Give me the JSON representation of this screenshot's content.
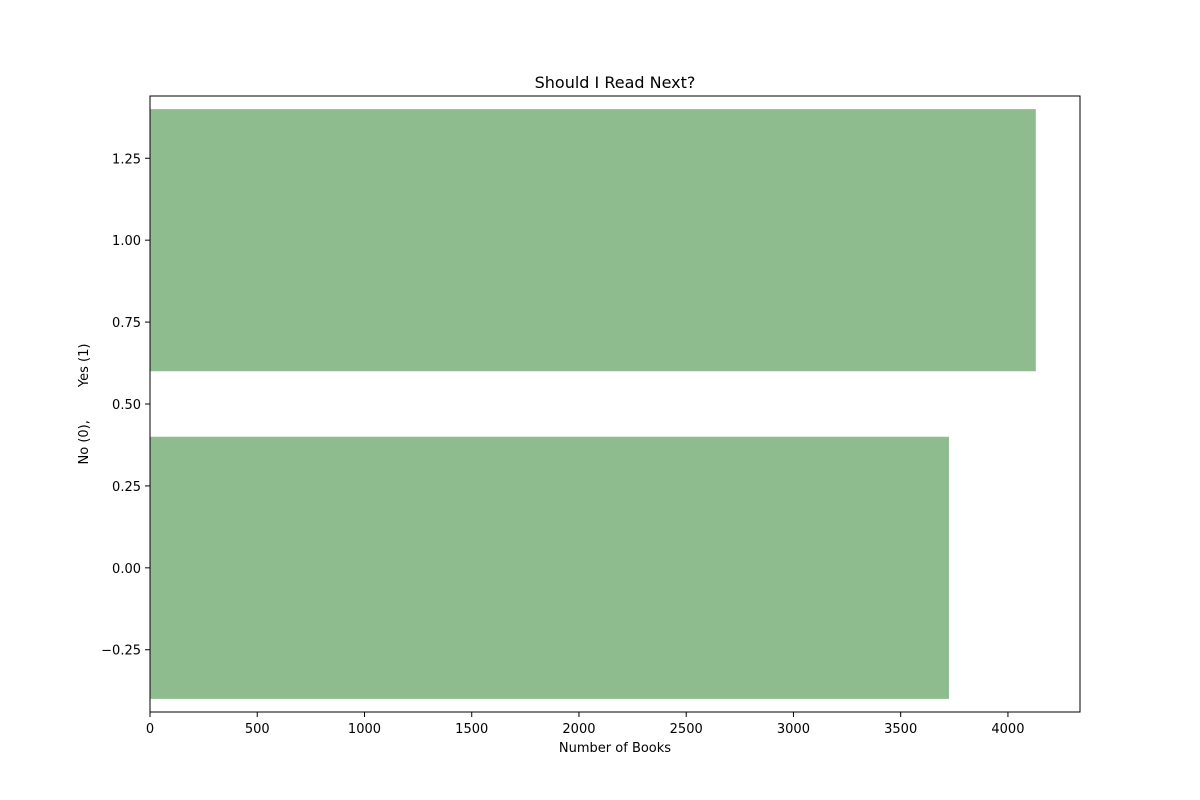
{
  "chart_data": {
    "type": "bar",
    "orientation": "horizontal",
    "title": "Should I Read Next?",
    "xlabel": "Number of Books",
    "ylabel": "No (0),        Yes (1)",
    "series": [
      {
        "values": [
          {
            "y": 0,
            "x": 3725
          },
          {
            "y": 1,
            "x": 4130
          }
        ]
      }
    ],
    "bar_height": 0.8,
    "xlim": [
      0,
      4336
    ],
    "ylim": [
      -0.44,
      1.44
    ],
    "xticks": [
      0,
      500,
      1000,
      1500,
      2000,
      2500,
      3000,
      3500,
      4000
    ],
    "yticks": [
      -0.25,
      0.0,
      0.25,
      0.5,
      0.75,
      1.0,
      1.25
    ],
    "ytick_labels": [
      "−0.25",
      "0.00",
      "0.25",
      "0.50",
      "0.75",
      "1.00",
      "1.25"
    ],
    "bar_color": "#8fbc8f",
    "grid": false
  }
}
